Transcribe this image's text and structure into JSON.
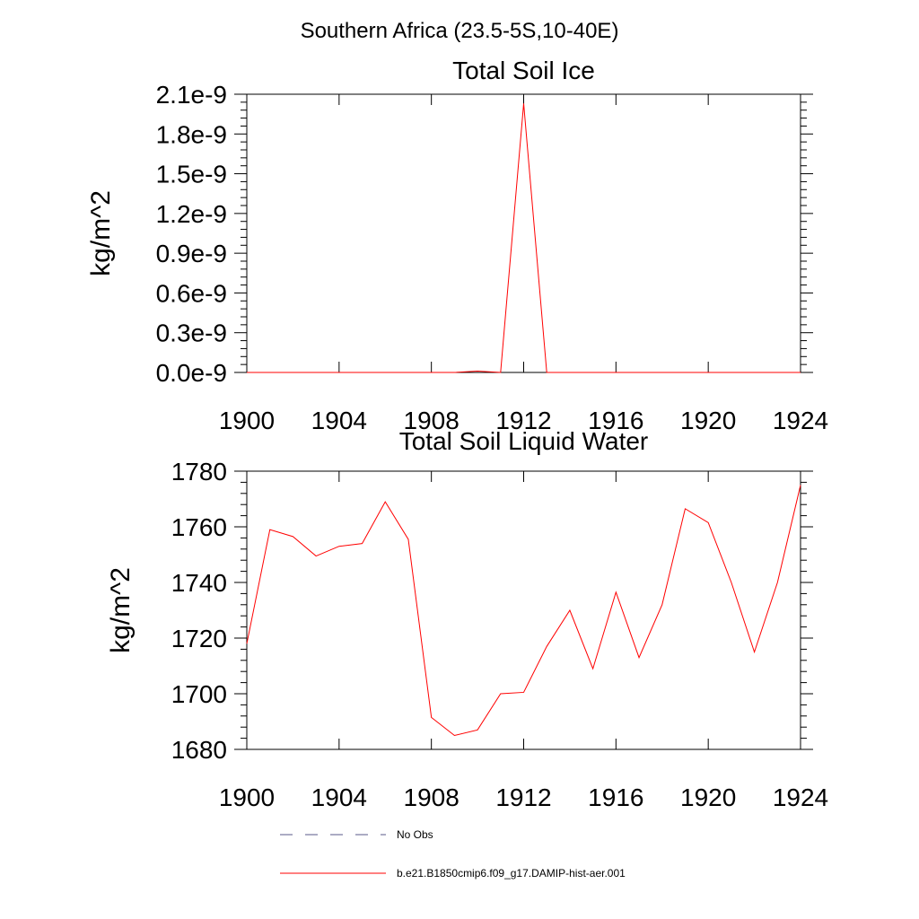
{
  "figure": {
    "suptitle": "Southern Africa (23.5-5S,10-40E)"
  },
  "legend": {
    "entries": [
      {
        "label": "No Obs",
        "style": "dashed",
        "color": "#5a5a8a"
      },
      {
        "label": "b.e21.B1850cmip6.f09_g17.DAMIP-hist-aer.001",
        "style": "solid",
        "color": "#ff0000"
      }
    ]
  },
  "chart_data": [
    {
      "type": "line",
      "title": "Total Soil Ice",
      "xlabel": "",
      "ylabel": "kg/m^2",
      "xlim": [
        1900,
        1924
      ],
      "ylim": [
        0,
        2.1e-09
      ],
      "xticks": [
        1900,
        1904,
        1908,
        1912,
        1916,
        1920,
        1924
      ],
      "xtick_labels": [
        "1900",
        "1904",
        "1908",
        "1912",
        "1916",
        "1920",
        "1924"
      ],
      "yticks": [
        0,
        3e-10,
        6e-10,
        9e-10,
        1.2e-09,
        1.5e-09,
        1.8e-09,
        2.1e-09
      ],
      "ytick_labels": [
        "0.0e-9",
        "0.3e-9",
        "0.6e-9",
        "0.9e-9",
        "1.2e-9",
        "1.5e-9",
        "1.8e-9",
        "2.1e-9"
      ],
      "grid": false,
      "x": [
        1900,
        1901,
        1902,
        1903,
        1904,
        1905,
        1906,
        1907,
        1908,
        1909,
        1910,
        1911,
        1912,
        1913,
        1914,
        1915,
        1916,
        1917,
        1918,
        1919,
        1920,
        1921,
        1922,
        1923,
        1924
      ],
      "series": [
        {
          "color": "#ff0000",
          "values": [
            0,
            0,
            0,
            0,
            0,
            0,
            0,
            0,
            0,
            0,
            1e-11,
            0,
            2.03e-09,
            0,
            0,
            0,
            0,
            0,
            0,
            0,
            0,
            0,
            0,
            0,
            0
          ]
        }
      ]
    },
    {
      "type": "line",
      "title": "Total Soil Liquid Water",
      "xlabel": "",
      "ylabel": "kg/m^2",
      "xlim": [
        1900,
        1924
      ],
      "ylim": [
        1680,
        1780
      ],
      "xticks": [
        1900,
        1904,
        1908,
        1912,
        1916,
        1920,
        1924
      ],
      "xtick_labels": [
        "1900",
        "1904",
        "1908",
        "1912",
        "1916",
        "1920",
        "1924"
      ],
      "yticks": [
        1680,
        1700,
        1720,
        1740,
        1760,
        1780
      ],
      "ytick_labels": [
        "1680",
        "1700",
        "1720",
        "1740",
        "1760",
        "1780"
      ],
      "grid": false,
      "x": [
        1900,
        1901,
        1902,
        1903,
        1904,
        1905,
        1906,
        1907,
        1908,
        1909,
        1910,
        1911,
        1912,
        1913,
        1914,
        1915,
        1916,
        1917,
        1918,
        1919,
        1920,
        1921,
        1922,
        1923,
        1924
      ],
      "series": [
        {
          "color": "#ff0000",
          "values": [
            1718,
            1759,
            1756.5,
            1749.5,
            1753,
            1754,
            1769,
            1755.5,
            1691.5,
            1685,
            1687,
            1700,
            1700.5,
            1717,
            1730,
            1709,
            1736.5,
            1713,
            1732,
            1766.5,
            1761.5,
            1740,
            1715,
            1740,
            1775
          ]
        }
      ]
    }
  ]
}
